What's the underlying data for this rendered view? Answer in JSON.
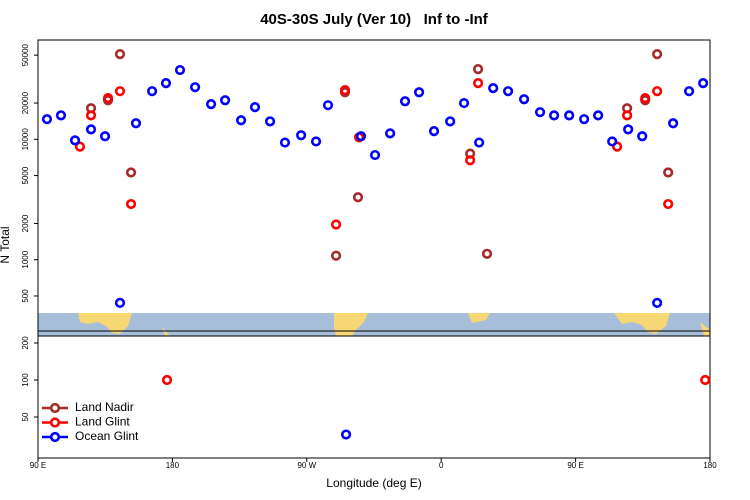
{
  "chart_data": {
    "type": "scatter",
    "title": "40S-30S July (Ver 10)   Inf to -Inf",
    "x_label": "Longitude (deg E)",
    "y_label": "N Total",
    "log_y": true,
    "legend": "bottom-left",
    "xlim": [
      90,
      540
    ],
    "xticks": [
      {
        "value": 90,
        "label": "90 E"
      },
      180,
      {
        "value": 270,
        "label": "90 W"
      },
      {
        "value": 360,
        "label": "0"
      },
      {
        "value": 450,
        "label": "90 E"
      },
      {
        "value": 540,
        "label": "180"
      }
    ],
    "panels": [
      {
        "ylim": [
          361,
          66800
        ],
        "yticks": [
          500,
          1000,
          2000,
          5000,
          10000,
          20000,
          50000
        ]
      },
      {
        "ylim": [
          23.2,
          228
        ],
        "yticks": [
          50,
          100,
          200
        ]
      }
    ],
    "series": [
      {
        "name": "Land Nadir",
        "color": "#a52a2a",
        "x": [
          125.5,
          136.9,
          144.9,
          152.3,
          289.6,
          295.6,
          304.3,
          379.4,
          384.7,
          390.7,
          484.5,
          496.6,
          504.6,
          512.0
        ],
        "values": [
          18100,
          21100,
          51000,
          5300,
          1080,
          24600,
          3300,
          7600,
          38300,
          1120,
          18100,
          21100,
          51000,
          5300
        ]
      },
      {
        "name": "Land Glint",
        "color": "#ff0000",
        "x": [
          118.1,
          125.5,
          136.9,
          144.9,
          152.3,
          176.4,
          289.6,
          295.6,
          305.0,
          379.4,
          384.7,
          477.8,
          484.5,
          496.6,
          504.6,
          512.0,
          536.8
        ],
        "values": [
          8700,
          15800,
          22000,
          25100,
          2900,
          100,
          1960,
          25600,
          10400,
          6700,
          29300,
          8700,
          15800,
          22000,
          25100,
          2900,
          100
        ]
      },
      {
        "name": "Ocean Glint",
        "color": "#0000ff",
        "x": [
          96.0,
          105.4,
          114.8,
          125.5,
          134.9,
          144.9,
          155.6,
          166.4,
          175.7,
          185.1,
          195.2,
          205.9,
          215.3,
          226.0,
          235.3,
          245.4,
          255.4,
          266.2,
          276.2,
          284.2,
          296.3,
          306.3,
          315.7,
          325.8,
          335.8,
          345.2,
          355.2,
          366.0,
          375.3,
          385.4,
          394.8,
          404.8,
          415.5,
          426.2,
          435.6,
          445.7,
          455.7,
          465.1,
          474.5,
          485.2,
          494.6,
          504.6,
          515.3,
          526.0,
          535.4
        ],
        "values": [
          14700,
          15800,
          9800,
          12100,
          10600,
          438,
          13600,
          25100,
          29300,
          37600,
          27100,
          19600,
          21100,
          14400,
          18500,
          14100,
          9400,
          10800,
          9600,
          19200,
          36,
          10600,
          7400,
          11200,
          20700,
          24600,
          11700,
          14100,
          20000,
          9400,
          26600,
          25100,
          21500,
          16800,
          15800,
          15800,
          14700,
          15800,
          9600,
          12100,
          10600,
          438,
          13600,
          25100,
          29300
        ]
      }
    ]
  }
}
